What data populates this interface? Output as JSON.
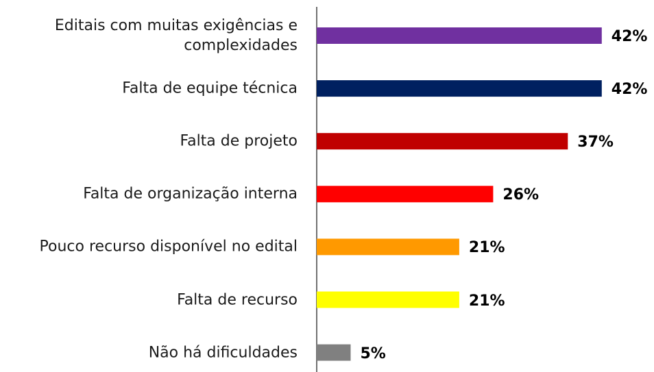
{
  "chart_data": {
    "type": "hbar",
    "categories": [
      "Editais com muitas exigências e complexidades",
      "Falta de equipe técnica",
      "Falta de projeto",
      "Falta de organização interna",
      "Pouco recurso disponível no edital",
      "Falta de recurso",
      "Não há dificuldades"
    ],
    "values": [
      42,
      42,
      37,
      26,
      21,
      21,
      5
    ],
    "value_labels": [
      "42%",
      "42%",
      "37%",
      "26%",
      "21%",
      "21%",
      "5%"
    ],
    "colors": [
      "#7030a0",
      "#002060",
      "#c00000",
      "#ff0000",
      "#ff9900",
      "#ffff00",
      "#808080"
    ]
  }
}
